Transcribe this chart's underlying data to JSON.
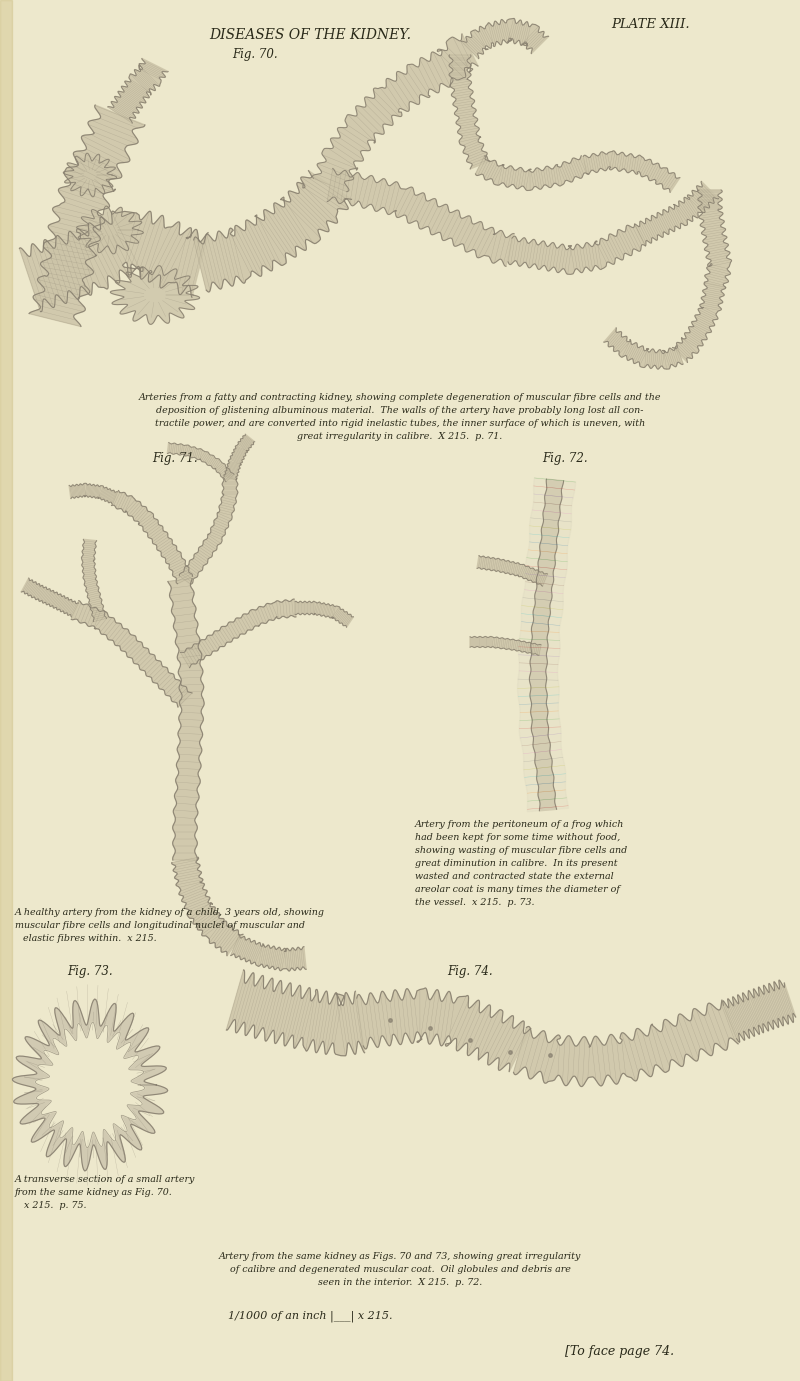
{
  "bg_color": "#ede8cc",
  "plate_text": "PLATE XIII.",
  "title_text": "DISEASES OF THE KIDNEY.",
  "fig70_label": "Fig. 70.",
  "fig71_label": "Fig. 71.",
  "fig72_label": "Fig. 72.",
  "fig73_label": "Fig. 73.",
  "fig74_label": "Fig. 74.",
  "caption_70": "Arteries from a fatty and contracting kidney, showing complete degeneration of muscular fibre cells and the\ndeposition of glistening albuminous material.  The walls of the artery have probably long lost all con-\ntractile power, and are converted into rigid inelastic tubes, the inner surface of which is uneven, with\ngreat irregularity in calibre.  X 215.  p. 71.",
  "caption_71a": "A healthy artery from the kidney of a child, 3 years old, showing",
  "caption_71b": "muscular fibre cells and longitudinal nuclei of muscular and",
  "caption_71c": "elastic fibres within.  x 215.",
  "caption_72a": "Artery from the peritoneum of a frog which",
  "caption_72b": "had been kept for some time without food,",
  "caption_72c": "showing wasting of muscular fibre cells and",
  "caption_72d": "great diminution in calibre.  In its present",
  "caption_72e": "wasted and contracted state the external",
  "caption_72f": "areolar coat is many times the diameter of",
  "caption_72g": "the vessel.  x 215.  p. 73.",
  "caption_73a": "A transverse section of a small artery",
  "caption_73b": "from the same kidney as Fig. 70.",
  "caption_73c": "x 215.  p. 75.",
  "caption_74a": "Artery from the same kidney as Figs. 70 and 73, showing great irregularity",
  "caption_74b": "of calibre and degenerated muscular coat.  Oil globules and debris are",
  "caption_74c": "seen in the interior.  X 215.  p. 72.",
  "caption_bottom": "1/1000 of an inch |___| x 215.",
  "caption_bottom2": "[To face page 74.",
  "text_color": "#2a2a1a",
  "sketch_color": "#b0a888",
  "sketch_dark": "#888070",
  "sketch_light": "#ccc4a8"
}
